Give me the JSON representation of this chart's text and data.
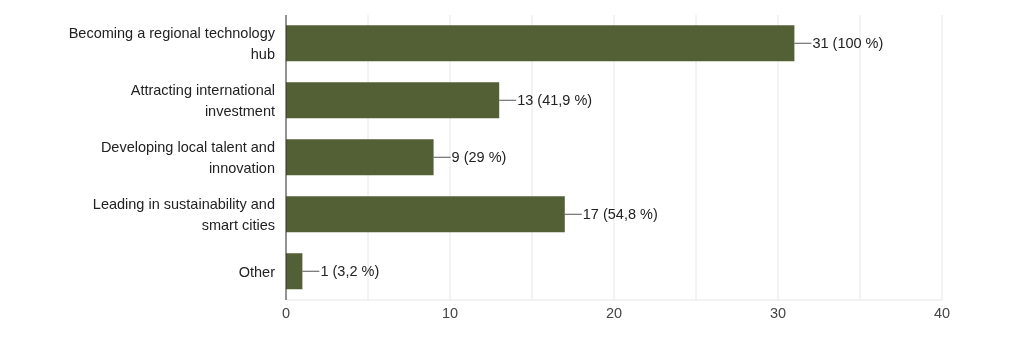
{
  "chart_data": {
    "type": "bar",
    "orientation": "horizontal",
    "categories": [
      "Becoming a regional technology hub",
      "Attracting international investment",
      "Developing local talent and innovation",
      "Leading in sustainability and smart cities",
      "Other"
    ],
    "values": [
      31,
      13,
      9,
      17,
      1
    ],
    "value_labels": [
      "31 (100 %)",
      "13 (41,9 %)",
      "9 (29 %)",
      "17 (54,8 %)",
      "1 (3,2 %)"
    ],
    "color": "#536036",
    "xlim": [
      0,
      40
    ],
    "xticks": [
      0,
      {
        "value": 5,
        "label": null
      },
      10,
      {
        "value": 15,
        "label": null
      },
      20,
      {
        "value": 25,
        "label": null
      },
      30,
      {
        "value": 35,
        "label": null
      },
      40
    ],
    "grid": "x",
    "legend": false
  }
}
